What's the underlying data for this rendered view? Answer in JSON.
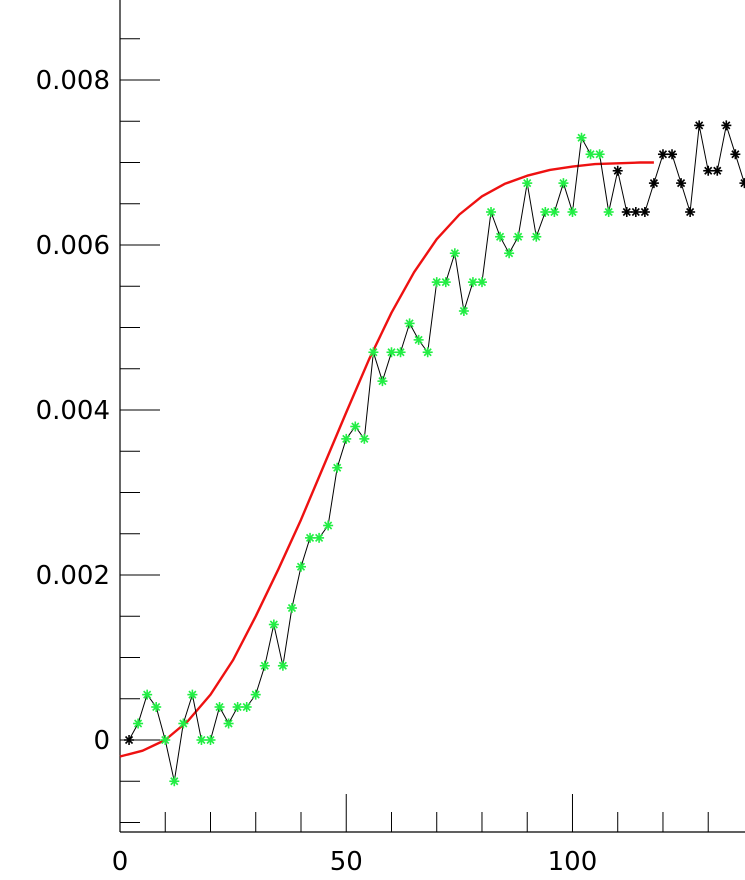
{
  "chart_data": {
    "type": "line",
    "title": "",
    "xlabel": "",
    "ylabel": "",
    "xlim": [
      0,
      138
    ],
    "ylim": [
      -0.00105,
      0.00905
    ],
    "x_ticks": [
      0,
      50,
      100
    ],
    "x_tick_labels": [
      "0",
      "50",
      "100"
    ],
    "y_ticks": [
      0,
      0.002,
      0.004,
      0.006,
      0.008
    ],
    "y_tick_labels": [
      "0",
      "0.002",
      "0.004",
      "0.006",
      "0.008"
    ],
    "grid": false,
    "colors": {
      "data_line": "#000000",
      "fit_marker": "#22ee44",
      "outside_marker": "#000000",
      "fit_curve": "#ee1111"
    },
    "series": [
      {
        "role": "data",
        "marker": "asterisk",
        "x": [
          2,
          4,
          6,
          8,
          10,
          12,
          14,
          16,
          18,
          20,
          22,
          24,
          26,
          28,
          30,
          32,
          34,
          36,
          38,
          40,
          42,
          44,
          46,
          48,
          50,
          52,
          54,
          56,
          58,
          60,
          62,
          64,
          66,
          68,
          70,
          72,
          74,
          76,
          78,
          80,
          82,
          84,
          86,
          88,
          90,
          92,
          94,
          96,
          98,
          100,
          102,
          104,
          106,
          108,
          110,
          112,
          114,
          116,
          118,
          120,
          122,
          124,
          126,
          128,
          130,
          132,
          134,
          136,
          138
        ],
        "y": [
          0.0,
          0.0002,
          0.00055,
          0.0004,
          0.0,
          -0.0005,
          0.0002,
          0.00055,
          0.0,
          0.0,
          0.0004,
          0.0002,
          0.0004,
          0.0004,
          0.00055,
          0.0009,
          0.0014,
          0.0009,
          0.0016,
          0.0021,
          0.00245,
          0.00245,
          0.0026,
          0.0033,
          0.00365,
          0.0038,
          0.00365,
          0.0047,
          0.00435,
          0.0047,
          0.0047,
          0.00505,
          0.00485,
          0.0047,
          0.00555,
          0.00555,
          0.0059,
          0.0052,
          0.00555,
          0.00555,
          0.0064,
          0.0061,
          0.0059,
          0.0061,
          0.00675,
          0.0061,
          0.0064,
          0.0064,
          0.00675,
          0.0064,
          0.0073,
          0.0071,
          0.0071,
          0.0064,
          0.0069,
          0.0064,
          0.0064,
          0.0064,
          0.00675,
          0.0071,
          0.0071,
          0.00675,
          0.0064,
          0.00745,
          0.0069,
          0.0069,
          0.00745,
          0.0071,
          0.00675
        ],
        "fit_range_x": [
          4,
          108
        ]
      },
      {
        "role": "fit",
        "x": [
          0,
          5,
          10,
          15,
          20,
          25,
          30,
          35,
          40,
          45,
          50,
          55,
          60,
          65,
          70,
          75,
          80,
          85,
          90,
          95,
          100,
          105,
          110,
          115,
          118
        ],
        "y": [
          -0.0002,
          -0.00013,
          0.0,
          0.00023,
          0.00055,
          0.00097,
          0.0015,
          0.00207,
          0.00267,
          0.00332,
          0.00397,
          0.00461,
          0.00518,
          0.00567,
          0.00607,
          0.00637,
          0.00659,
          0.00674,
          0.00684,
          0.00691,
          0.00695,
          0.00698,
          0.00699,
          0.007,
          0.007
        ]
      }
    ]
  }
}
